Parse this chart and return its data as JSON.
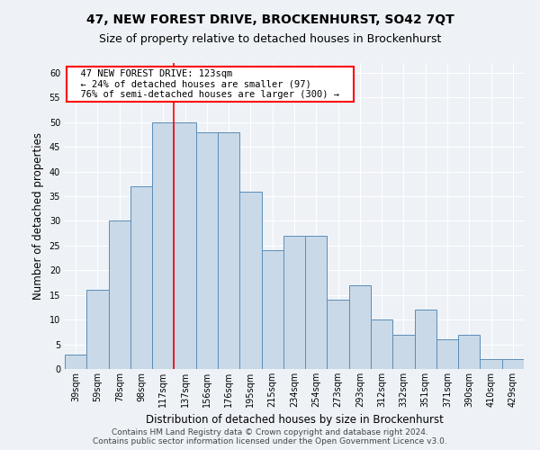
{
  "title": "47, NEW FOREST DRIVE, BROCKENHURST, SO42 7QT",
  "subtitle": "Size of property relative to detached houses in Brockenhurst",
  "xlabel": "Distribution of detached houses by size in Brockenhurst",
  "ylabel": "Number of detached properties",
  "footer_line1": "Contains HM Land Registry data © Crown copyright and database right 2024.",
  "footer_line2": "Contains public sector information licensed under the Open Government Licence v3.0.",
  "categories": [
    "39sqm",
    "59sqm",
    "78sqm",
    "98sqm",
    "117sqm",
    "137sqm",
    "156sqm",
    "176sqm",
    "195sqm",
    "215sqm",
    "234sqm",
    "254sqm",
    "273sqm",
    "293sqm",
    "312sqm",
    "332sqm",
    "351sqm",
    "371sqm",
    "390sqm",
    "410sqm",
    "429sqm"
  ],
  "values": [
    3,
    16,
    30,
    37,
    50,
    50,
    48,
    48,
    36,
    24,
    27,
    27,
    14,
    17,
    10,
    7,
    12,
    6,
    7,
    2,
    2
  ],
  "bar_color": "#c9d9e8",
  "bar_edge_color": "#5b8db8",
  "annotation_text": "  47 NEW FOREST DRIVE: 123sqm  \n  ← 24% of detached houses are smaller (97)  \n  76% of semi-detached houses are larger (300) →  ",
  "annotation_box_color": "white",
  "annotation_box_edge_color": "red",
  "red_line_x": 4.5,
  "ylim": [
    0,
    62
  ],
  "yticks": [
    0,
    5,
    10,
    15,
    20,
    25,
    30,
    35,
    40,
    45,
    50,
    55,
    60
  ],
  "background_color": "#eef2f7",
  "grid_color": "white",
  "title_fontsize": 10,
  "subtitle_fontsize": 9,
  "axis_label_fontsize": 8.5,
  "tick_fontsize": 7,
  "footer_fontsize": 6.5,
  "annotation_fontsize": 7.5
}
